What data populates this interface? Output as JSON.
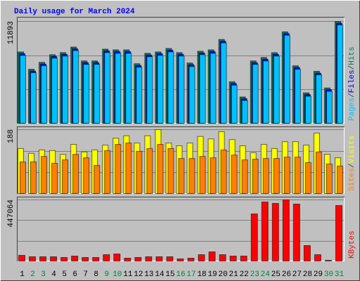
{
  "title": "Daily usage for March 2024",
  "chart_data": [
    {
      "type": "bar",
      "legend_separator": "/",
      "ylim": [
        0,
        11893
      ],
      "yticks": [
        11893
      ],
      "series": [
        {
          "name": "Pages",
          "color": "#00c0ff",
          "values": [
            7950,
            5950,
            6750,
            7640,
            7880,
            8520,
            6910,
            6920,
            8280,
            8200,
            8190,
            6590,
            7800,
            7960,
            8360,
            7880,
            6670,
            8040,
            8200,
            9400,
            4500,
            2730,
            6910,
            7310,
            7880,
            10290,
            6350,
            3220,
            5700,
            3780,
            11490
          ]
        },
        {
          "name": "Files",
          "color": "#0000ff",
          "values": [
            8150,
            6150,
            6950,
            7840,
            8080,
            8720,
            7110,
            7120,
            8480,
            8400,
            8390,
            6790,
            8000,
            8160,
            8560,
            8080,
            6870,
            8240,
            8400,
            9600,
            4700,
            2930,
            7110,
            7510,
            8080,
            10490,
            6550,
            3420,
            5900,
            3980,
            11690
          ]
        },
        {
          "name": "Hits",
          "color": "#00805c",
          "values": [
            8357,
            6348,
            7152,
            8036,
            8277,
            8920,
            7313,
            7313,
            8679,
            8598,
            8598,
            6991,
            8196,
            8357,
            8759,
            8277,
            7072,
            8438,
            8598,
            9804,
            4902,
            3134,
            7313,
            7714,
            8277,
            10688,
            6750,
            3616,
            6107,
            4179,
            11893
          ]
        }
      ]
    },
    {
      "type": "bar",
      "legend_separator": "/",
      "ylim": [
        0,
        188
      ],
      "yticks": [
        188
      ],
      "series": [
        {
          "name": "Sites",
          "color": "#ff8000",
          "values": [
            94,
            94,
            110,
            90,
            100,
            116,
            106,
            84,
            127,
            145,
            149,
            125,
            133,
            145,
            133,
            104,
            104,
            110,
            106,
            129,
            114,
            100,
            102,
            104,
            104,
            108,
            108,
            92,
            123,
            88,
            82
          ]
        },
        {
          "name": "Visits",
          "color": "#ffff00",
          "values": [
            133,
            119,
            129,
            127,
            116,
            145,
            123,
            129,
            143,
            163,
            170,
            149,
            170,
            188,
            149,
            141,
            149,
            168,
            161,
            182,
            159,
            141,
            121,
            145,
            133,
            153,
            153,
            143,
            178,
            116,
            106
          ]
        }
      ]
    },
    {
      "type": "bar",
      "ylim": [
        0,
        447064
      ],
      "yticks": [
        447064
      ],
      "categories": [
        "1",
        "2",
        "3",
        "4",
        "5",
        "6",
        "7",
        "8",
        "9",
        "10",
        "11",
        "12",
        "13",
        "14",
        "15",
        "16",
        "17",
        "18",
        "19",
        "20",
        "21",
        "22",
        "23",
        "24",
        "25",
        "26",
        "27",
        "28",
        "29",
        "30",
        "31"
      ],
      "category_colors": [
        "#000000",
        "#008040",
        "#008040",
        "#000000",
        "#000000",
        "#000000",
        "#000000",
        "#000000",
        "#008040",
        "#008040",
        "#000000",
        "#000000",
        "#000000",
        "#000000",
        "#000000",
        "#008040",
        "#008040",
        "#000000",
        "#000000",
        "#000000",
        "#000000",
        "#000000",
        "#008040",
        "#008040",
        "#000000",
        "#000000",
        "#000000",
        "#000000",
        "#000000",
        "#008040",
        "#008040"
      ],
      "series": [
        {
          "name": "KBytes",
          "color": "#ff0000",
          "values": [
            45700,
            35600,
            35600,
            35600,
            30500,
            40600,
            30500,
            30500,
            50800,
            55900,
            25400,
            30500,
            35600,
            35600,
            35600,
            20300,
            25400,
            50800,
            71100,
            50800,
            40600,
            40600,
            345500,
            431800,
            421600,
            447064,
            416600,
            116800,
            50800,
            10200,
            406400
          ]
        }
      ]
    }
  ]
}
